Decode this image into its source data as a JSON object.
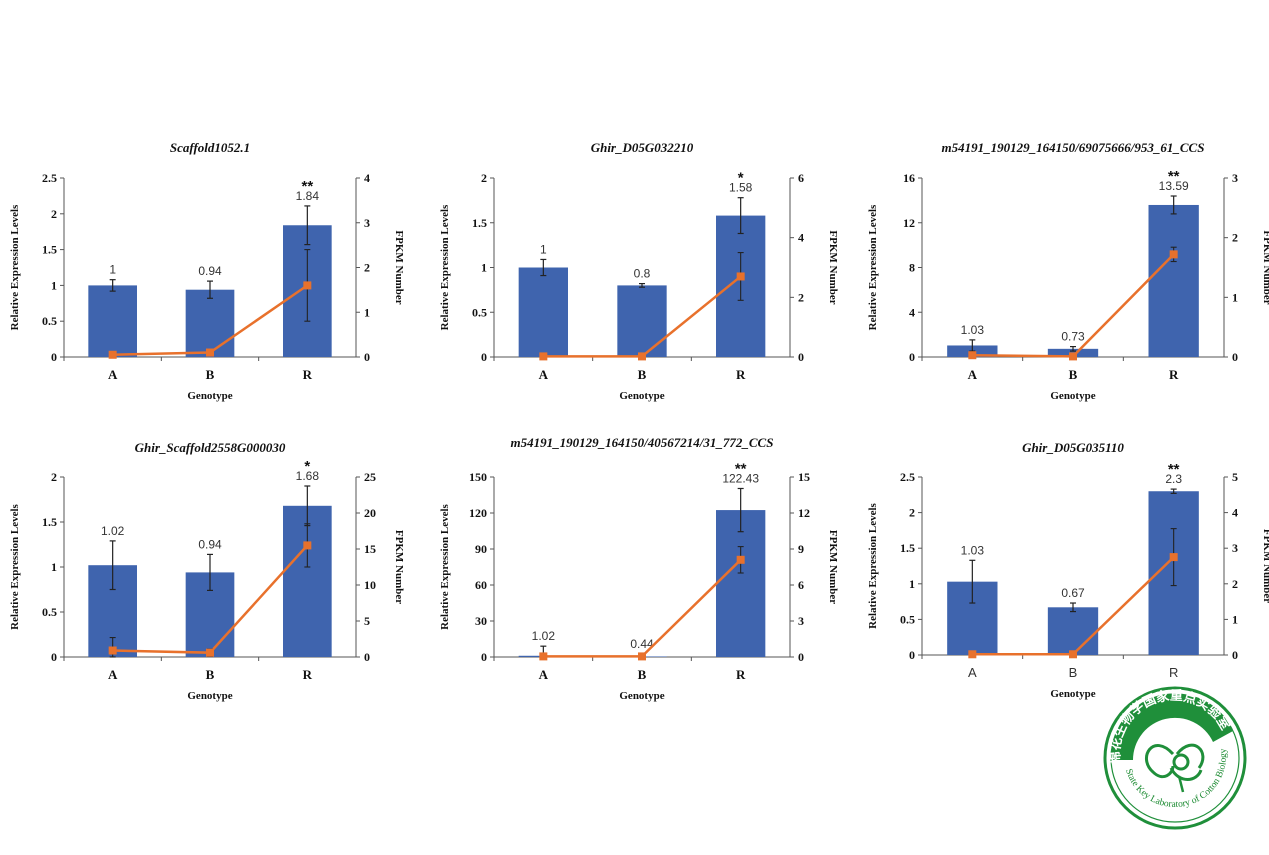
{
  "colors": {
    "bar": "#3f64ae",
    "line": "#e8712c",
    "axis": "#555555",
    "seal": "#1f8f3a"
  },
  "seal": {
    "cn_text": "棉花生物学国家重点实验室",
    "en_text": "State Key Laboratory of Cotton Biology",
    "icon": "cotton-boll-icon"
  },
  "chart_data": [
    {
      "type": "bar",
      "title": "Scaffold1052.1",
      "categories": [
        "A",
        "B",
        "R"
      ],
      "xlabel": "Genotype",
      "ylabel": "Relative Expression Levels",
      "y2label": "FPKM Number",
      "ylim": [
        0,
        2.5
      ],
      "yticks": [
        "0",
        "0.5",
        "1",
        "1.5",
        "2",
        "2.5"
      ],
      "y2lim": [
        0,
        4
      ],
      "y2ticks": [
        "0",
        "1",
        "2",
        "3",
        "4"
      ],
      "series": [
        {
          "values": [
            1,
            0.94,
            1.84
          ],
          "errors": [
            0.08,
            0.12,
            0.27
          ],
          "labels": [
            "1",
            "0.94",
            "1.84"
          ],
          "significance": [
            "",
            "",
            "**"
          ]
        },
        {
          "type": "line",
          "values": [
            0.05,
            0.1,
            1.6
          ],
          "errors": [
            0,
            0,
            0.8
          ]
        }
      ]
    },
    {
      "type": "bar",
      "title": "Ghir_D05G032210",
      "categories": [
        "A",
        "B",
        "R"
      ],
      "xlabel": "Genotype",
      "ylabel": "Relative Expression Levels",
      "y2label": "FPKM Number",
      "ylim": [
        0,
        2
      ],
      "yticks": [
        "0",
        "0.5",
        "1",
        "1.5",
        "2"
      ],
      "y2lim": [
        0,
        6
      ],
      "y2ticks": [
        "0",
        "2",
        "4",
        "6"
      ],
      "series": [
        {
          "values": [
            1,
            0.8,
            1.58
          ],
          "errors": [
            0.09,
            0.02,
            0.2
          ],
          "labels": [
            "1",
            "0.8",
            "1.58"
          ],
          "significance": [
            "",
            "",
            "*"
          ]
        },
        {
          "type": "line",
          "values": [
            0.02,
            0.02,
            2.7
          ],
          "errors": [
            0,
            0,
            0.8
          ]
        }
      ]
    },
    {
      "type": "bar",
      "title": "m54191_190129_164150/69075666/953_61_CCS",
      "categories": [
        "A",
        "B",
        "R"
      ],
      "xlabel": "Genotype",
      "ylabel": "Relative Expression Levels",
      "y2label": "FPKM Number",
      "ylim": [
        0,
        16
      ],
      "yticks": [
        "0",
        "4",
        "8",
        "12",
        "16"
      ],
      "y2lim": [
        0,
        3
      ],
      "y2ticks": [
        "0",
        "1",
        "2",
        "3"
      ],
      "series": [
        {
          "values": [
            1.03,
            0.73,
            13.59
          ],
          "errors": [
            0.5,
            0.2,
            0.8
          ],
          "labels": [
            "1.03",
            "0.73",
            "13.59"
          ],
          "significance": [
            "",
            "",
            "**"
          ]
        },
        {
          "type": "line",
          "values": [
            0.03,
            0.01,
            1.72
          ],
          "errors": [
            0,
            0.05,
            0.12
          ]
        }
      ]
    },
    {
      "type": "bar",
      "title": "Ghir_Scaffold2558G000030",
      "categories": [
        "A",
        "B",
        "R"
      ],
      "xlabel": "Genotype",
      "ylabel": "Relative Expression Levels",
      "y2label": "FPKM Number",
      "ylim": [
        0,
        2
      ],
      "yticks": [
        "0",
        "0.5",
        "1",
        "1.5",
        "2"
      ],
      "y2lim": [
        0,
        25
      ],
      "y2ticks": [
        "0",
        "5",
        "10",
        "15",
        "20",
        "25"
      ],
      "series": [
        {
          "values": [
            1.02,
            0.94,
            1.68
          ],
          "errors": [
            0.27,
            0.2,
            0.22
          ],
          "labels": [
            "1.02",
            "0.94",
            "1.68"
          ],
          "significance": [
            "",
            "",
            "*"
          ]
        },
        {
          "type": "line",
          "values": [
            0.9,
            0.6,
            15.5
          ],
          "errors": [
            1.8,
            0.5,
            3.0
          ]
        }
      ]
    },
    {
      "type": "bar",
      "title": "m54191_190129_164150/40567214/31_772_CCS",
      "categories": [
        "A",
        "B",
        "R"
      ],
      "xlabel": "Genotype",
      "ylabel": "Relative Expression Levels",
      "y2label": "FPKM Number",
      "ylim": [
        0,
        150
      ],
      "yticks": [
        "0",
        "30",
        "60",
        "90",
        "120",
        "150"
      ],
      "y2lim": [
        0,
        15
      ],
      "y2ticks": [
        "0",
        "3",
        "6",
        "9",
        "12",
        "15"
      ],
      "series": [
        {
          "values": [
            1.02,
            0.44,
            122.43
          ],
          "errors": [
            8,
            2,
            18
          ],
          "labels": [
            "1.02",
            "0.44",
            "122.43"
          ],
          "significance": [
            "",
            "",
            "**"
          ]
        },
        {
          "type": "line",
          "values": [
            0.05,
            0.05,
            8.1
          ],
          "errors": [
            0,
            0,
            1.1
          ]
        }
      ]
    },
    {
      "type": "bar",
      "title": "Ghir_D05G035110",
      "categories": [
        "A",
        "B",
        "R"
      ],
      "xlabel": "Genotype",
      "ylabel": "Relative Expression Levels",
      "y2label": "FPKM Number",
      "ylim": [
        0,
        2.5
      ],
      "yticks": [
        "0",
        "0.5",
        "1",
        "1.5",
        "2",
        "2.5"
      ],
      "y2lim": [
        0,
        5
      ],
      "y2ticks": [
        "0",
        "1",
        "2",
        "3",
        "4",
        "5"
      ],
      "series": [
        {
          "values": [
            1.03,
            0.67,
            2.3
          ],
          "errors": [
            0.3,
            0.06,
            0.03
          ],
          "labels": [
            "1.03",
            "0.67",
            "2.3"
          ],
          "significance": [
            "",
            "",
            "**"
          ]
        },
        {
          "type": "line",
          "values": [
            0.02,
            0.02,
            2.75
          ],
          "errors": [
            0,
            0,
            0.8
          ]
        }
      ]
    }
  ]
}
